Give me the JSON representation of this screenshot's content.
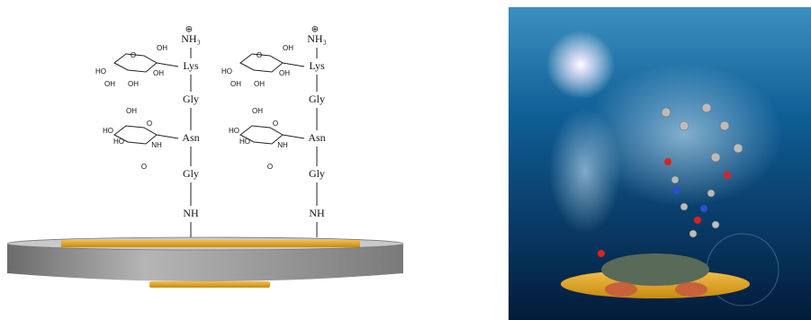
{
  "chains": [
    {
      "charge": "⊕",
      "labels": [
        "NH₃",
        "Lys",
        "Gly",
        "Asn",
        "Gly",
        "NH"
      ],
      "sugars": [
        {
          "labels": [
            "OH",
            "O",
            "OH",
            "OH",
            "HO",
            "OH"
          ]
        },
        {
          "labels": [
            "OH",
            "HO",
            "HO",
            "O",
            "NH",
            "O"
          ]
        }
      ]
    },
    {
      "charge": "⊕",
      "labels": [
        "NH₃",
        "Lys",
        "Gly",
        "Asn",
        "Gly",
        "NH"
      ],
      "sugars": [
        {
          "labels": [
            "OH",
            "O",
            "OH",
            "OH",
            "HO",
            "OH"
          ]
        },
        {
          "labels": [
            "OH",
            "HO",
            "HO",
            "O",
            "NH",
            "O"
          ]
        }
      ]
    }
  ]
}
